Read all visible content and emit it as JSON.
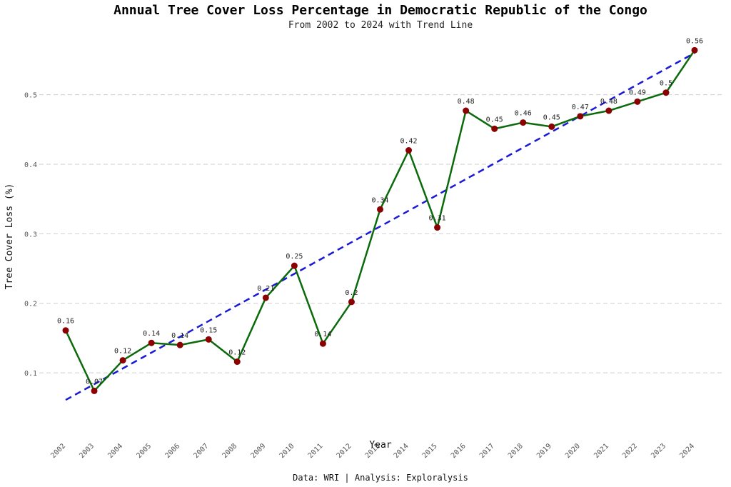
{
  "chart_data": {
    "type": "line",
    "title": "Annual Tree Cover Loss Percentage in Democratic Republic of the Congo",
    "subtitle": "From 2002 to 2024 with Trend Line",
    "xlabel": "Year",
    "ylabel": "Tree Cover Loss (%)",
    "caption": "Data: WRI | Analysis: Exploralysis",
    "ylim": [
      0.02,
      0.59
    ],
    "yticks": [
      0.1,
      0.2,
      0.3,
      0.4,
      0.5
    ],
    "ytick_labels": [
      "0.1",
      "0.2",
      "0.3",
      "0.4",
      "0.5"
    ],
    "grid": true,
    "series": [
      {
        "name": "Tree Cover Loss",
        "color": "#0b6b0b",
        "marker_color": "#8b0000",
        "x": [
          "2002",
          "2003",
          "2004",
          "2005",
          "2006",
          "2007",
          "2008",
          "2009",
          "2010",
          "2011",
          "2012",
          "2013",
          "2014",
          "2015",
          "2016",
          "2017",
          "2018",
          "2019",
          "2020",
          "2021",
          "2022",
          "2023",
          "2024"
        ],
        "values": [
          0.161,
          0.074,
          0.118,
          0.143,
          0.14,
          0.148,
          0.116,
          0.208,
          0.254,
          0.142,
          0.202,
          0.335,
          0.42,
          0.309,
          0.477,
          0.451,
          0.46,
          0.454,
          0.469,
          0.477,
          0.49,
          0.503,
          0.564
        ],
        "labels": [
          "0.16",
          "0.07",
          "0.12",
          "0.14",
          "0.14",
          "0.15",
          "0.12",
          "0.21",
          "0.25",
          "0.14",
          "0.2",
          "0.34",
          "0.42",
          "0.31",
          "0.48",
          "0.45",
          "0.46",
          "0.45",
          "0.47",
          "0.48",
          "0.49",
          "0.5",
          "0.56"
        ]
      }
    ],
    "trend": {
      "name": "Trend Line",
      "color": "#1a1ad6",
      "start": 0.061,
      "end": 0.56
    }
  }
}
